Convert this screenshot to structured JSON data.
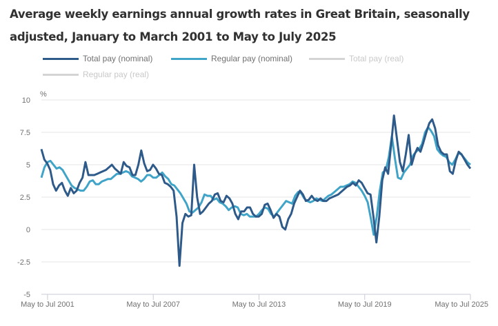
{
  "chart_data": {
    "type": "line",
    "title": "Average weekly earnings annual growth rates in Great Britain, seasonally adjusted, January to March 2001 to May to July 2025",
    "ylabel": "%",
    "xlabel": "",
    "ylim": [
      -5,
      10
    ],
    "yticks": [
      "10",
      "7.5",
      "5",
      "2.5",
      "0",
      "-2.5",
      "-5"
    ],
    "ytick_values": [
      10,
      7.5,
      5,
      2.5,
      0,
      -2.5,
      -5
    ],
    "xticks": [
      "May to Jul 2001",
      "May to Jul 2007",
      "May to Jul 2013",
      "May to Jul 2019",
      "May to Jul 2025"
    ],
    "xtick_years": [
      2001.45,
      2007.45,
      2013.45,
      2019.45,
      2025.45
    ],
    "x_start": 2001.1,
    "x_end": 2025.45,
    "grid": true,
    "legend_position": "top",
    "series": [
      {
        "name": "Total pay (nominal)",
        "color": "#2e5a8a",
        "visible": true,
        "x_step_years": 0.25,
        "values": [
          6.2,
          5.4,
          5.1,
          4.6,
          3.5,
          3.0,
          3.4,
          3.6,
          3.0,
          2.6,
          3.2,
          2.8,
          3.0,
          3.6,
          4.0,
          5.2,
          4.2,
          4.2,
          4.2,
          4.3,
          4.4,
          4.5,
          4.6,
          4.8,
          5.0,
          4.7,
          4.5,
          4.3,
          5.2,
          4.9,
          4.8,
          4.2,
          4.2,
          5.0,
          6.1,
          5.1,
          4.5,
          4.6,
          5.0,
          4.7,
          4.3,
          4.2,
          3.6,
          3.5,
          3.3,
          3.0,
          1.0,
          -2.8,
          0.5,
          1.2,
          1.0,
          1.1,
          5.0,
          2.5,
          1.2,
          1.4,
          1.7,
          2.0,
          2.2,
          2.7,
          2.8,
          2.2,
          2.1,
          2.6,
          2.4,
          2.0,
          1.2,
          0.8,
          1.4,
          1.4,
          1.7,
          1.7,
          1.2,
          1.0,
          1.0,
          1.2,
          1.9,
          2.0,
          1.5,
          0.9,
          1.2,
          1.0,
          0.2,
          0.0,
          0.8,
          1.2,
          2.0,
          2.5,
          3.0,
          2.7,
          2.2,
          2.3,
          2.6,
          2.3,
          2.2,
          2.4,
          2.2,
          2.2,
          2.4,
          2.5,
          2.6,
          2.7,
          2.9,
          3.1,
          3.3,
          3.4,
          3.6,
          3.4,
          3.8,
          3.6,
          3.2,
          2.8,
          2.7,
          1.0,
          -1.0,
          1.0,
          3.8,
          4.8,
          4.3,
          6.5,
          8.8,
          7.0,
          5.2,
          4.5,
          5.8,
          7.3,
          5.0,
          5.8,
          6.3,
          6.0,
          6.7,
          7.5,
          8.2,
          8.5,
          7.8,
          6.5,
          6.0,
          5.8,
          5.8,
          4.5,
          4.3,
          5.3,
          6.0,
          5.8,
          5.4,
          5.0,
          4.7
        ]
      },
      {
        "name": "Regular pay (nominal)",
        "color": "#3fa4c7",
        "visible": true,
        "x_step_years": 0.25,
        "values": [
          4.0,
          4.8,
          5.2,
          5.3,
          5.0,
          4.7,
          4.8,
          4.6,
          4.2,
          3.8,
          3.4,
          3.2,
          3.1,
          3.0,
          3.0,
          3.3,
          3.7,
          3.8,
          3.5,
          3.5,
          3.7,
          3.8,
          3.9,
          3.9,
          4.1,
          4.3,
          4.3,
          4.4,
          4.5,
          4.4,
          4.1,
          4.0,
          3.9,
          3.7,
          3.9,
          4.2,
          4.2,
          4.0,
          4.0,
          4.2,
          4.4,
          4.1,
          3.9,
          3.5,
          3.4,
          3.1,
          2.8,
          2.4,
          2.0,
          1.4,
          1.3,
          1.5,
          1.7,
          2.1,
          2.7,
          2.6,
          2.6,
          2.3,
          2.4,
          2.1,
          2.0,
          1.8,
          1.5,
          1.7,
          1.8,
          1.7,
          1.2,
          1.1,
          1.2,
          1.0,
          1.0,
          1.0,
          1.2,
          1.5,
          1.7,
          1.6,
          1.2,
          1.0,
          1.3,
          1.6,
          1.9,
          2.2,
          2.1,
          2.0,
          2.6,
          2.9,
          2.8,
          2.4,
          2.2,
          2.1,
          2.2,
          2.4,
          2.3,
          2.2,
          2.4,
          2.6,
          2.7,
          2.9,
          3.1,
          3.3,
          3.3,
          3.4,
          3.5,
          3.7,
          3.6,
          3.3,
          3.0,
          2.6,
          2.1,
          0.9,
          -0.4,
          1.0,
          3.0,
          4.4,
          4.6,
          5.6,
          7.2,
          5.5,
          4.0,
          3.9,
          4.4,
          4.7,
          5.0,
          5.7,
          6.0,
          6.2,
          6.6,
          7.5,
          7.9,
          7.6,
          7.2,
          6.2,
          5.9,
          5.7,
          5.6,
          5.2,
          5.0,
          5.4,
          5.9,
          5.8,
          5.5,
          5.2,
          5.0
        ]
      },
      {
        "name": "Total pay (real)",
        "color": "#c8c8c8",
        "visible": false,
        "values": []
      },
      {
        "name": "Regular pay (real)",
        "color": "#c8c8c8",
        "visible": false,
        "values": []
      }
    ]
  }
}
